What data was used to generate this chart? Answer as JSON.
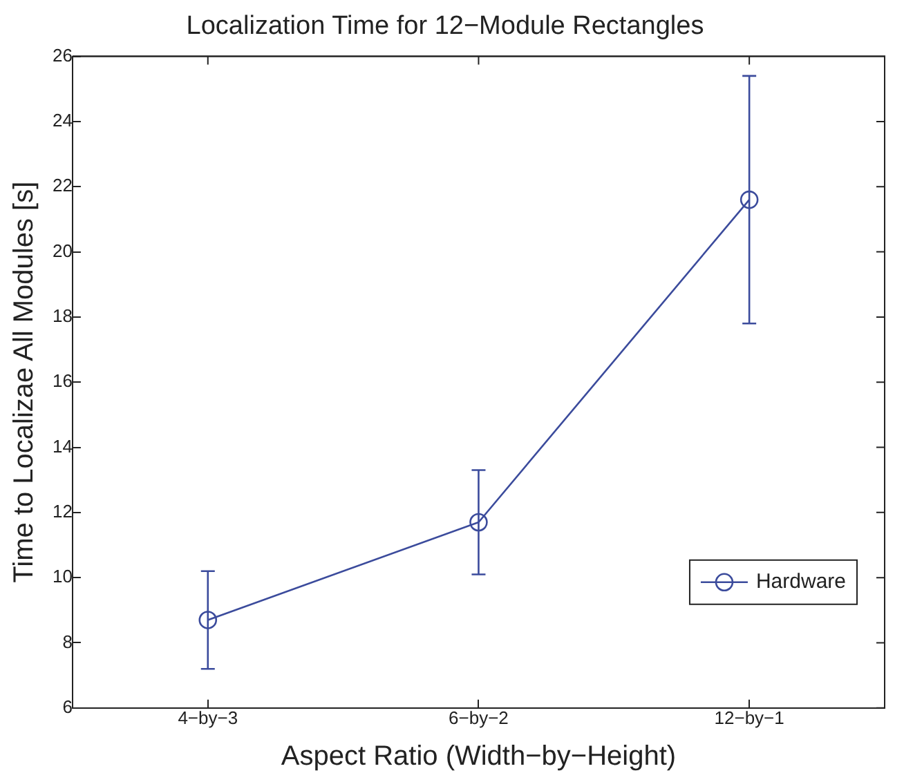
{
  "chart_data": {
    "type": "line",
    "title": "Localization Time for 12−Module Rectangles",
    "xlabel": "Aspect Ratio (Width−by−Height)",
    "ylabel": "Time to Localizae All Modules [s]",
    "categories": [
      "4−by−3",
      "6−by−2",
      "12−by−1"
    ],
    "ylim": [
      6,
      26
    ],
    "yticks": [
      6,
      8,
      10,
      12,
      14,
      16,
      18,
      20,
      22,
      24,
      26
    ],
    "series": [
      {
        "name": "Hardware",
        "color": "#3b4b9c",
        "values": [
          8.7,
          11.7,
          21.6
        ],
        "errors": [
          [
            7.2,
            10.2
          ],
          [
            10.1,
            13.3
          ],
          [
            17.8,
            25.4
          ]
        ]
      }
    ],
    "marker": "circle",
    "line_style": "solid",
    "grid": false,
    "legend": "bottom right"
  }
}
